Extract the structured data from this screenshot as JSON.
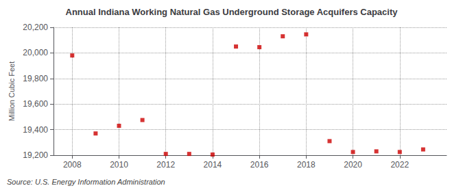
{
  "chart_data": {
    "type": "scatter",
    "title": "Annual Indiana Working Natural Gas Underground Storage Acquifers Capacity",
    "ylabel": "Million Cubic Feet",
    "annotations": [
      "Source: U.S. Energy Information Administration"
    ],
    "x": [
      2008,
      2009,
      2010,
      2011,
      2012,
      2013,
      2014,
      2015,
      2016,
      2017,
      2018,
      2019,
      2020,
      2021,
      2022,
      2023
    ],
    "values": [
      19980,
      19370,
      19430,
      19475,
      19210,
      19210,
      19205,
      20050,
      20045,
      20130,
      20145,
      19310,
      19225,
      19230,
      19225,
      19245
    ],
    "color": "#cc0000",
    "marker": "square",
    "xlim": [
      2007.2,
      2024.0
    ],
    "xticks": [
      2008,
      2010,
      2012,
      2014,
      2016,
      2018,
      2020,
      2022
    ],
    "ylim": [
      19200,
      20200
    ],
    "yticks": [
      {
        "value": 19200,
        "label": "19,200"
      },
      {
        "value": 19400,
        "label": "19,400"
      },
      {
        "value": 19600,
        "label": "19,600"
      },
      {
        "value": 19800,
        "label": "19,800"
      },
      {
        "value": 20000,
        "label": "20,000"
      },
      {
        "value": 20200,
        "label": "20,200"
      }
    ],
    "grid": true
  }
}
